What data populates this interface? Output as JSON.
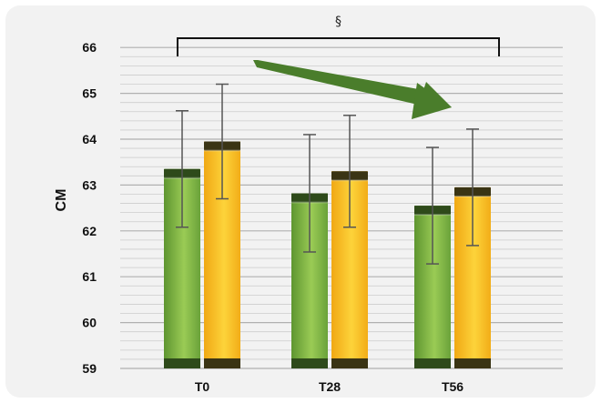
{
  "chart_data": {
    "type": "bar",
    "title": "",
    "xlabel": "",
    "ylabel": "CM",
    "ylim": [
      59,
      66
    ],
    "yticks": [
      59,
      60,
      61,
      62,
      63,
      64,
      65,
      66
    ],
    "minor_gridlines_per_unit": 5,
    "grid": true,
    "legend": "none",
    "categories": [
      "T0",
      "T28",
      "T56"
    ],
    "series": [
      {
        "values": [
          63.35,
          62.82,
          62.55
        ],
        "errors": [
          1.27,
          1.28,
          1.27
        ],
        "color": "#6fa638"
      },
      {
        "values": [
          63.95,
          63.3,
          62.95
        ],
        "errors": [
          1.25,
          1.22,
          1.27
        ],
        "color": "#f5b31b"
      }
    ],
    "annotations": {
      "significance_symbol": "§",
      "bracket": [
        "T0",
        "T56"
      ],
      "trend_arrow_color": "#4a7d2b"
    }
  }
}
